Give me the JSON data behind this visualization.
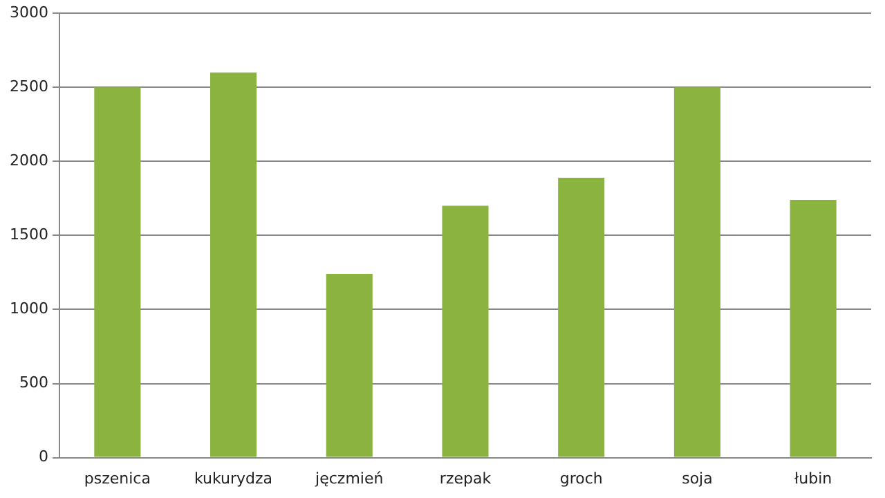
{
  "chart_data": {
    "type": "bar",
    "categories": [
      "pszenica",
      "kukurydza",
      "jęczmień",
      "rzepak",
      "groch",
      "soja",
      "łubin"
    ],
    "values": [
      2500,
      2600,
      1240,
      1700,
      1890,
      2500,
      1740
    ],
    "color": "#8ab43f",
    "ylim": [
      0,
      3000
    ],
    "yticks": [
      0,
      500,
      1000,
      1500,
      2000,
      2500,
      3000
    ],
    "grid": "y",
    "legend": false
  }
}
